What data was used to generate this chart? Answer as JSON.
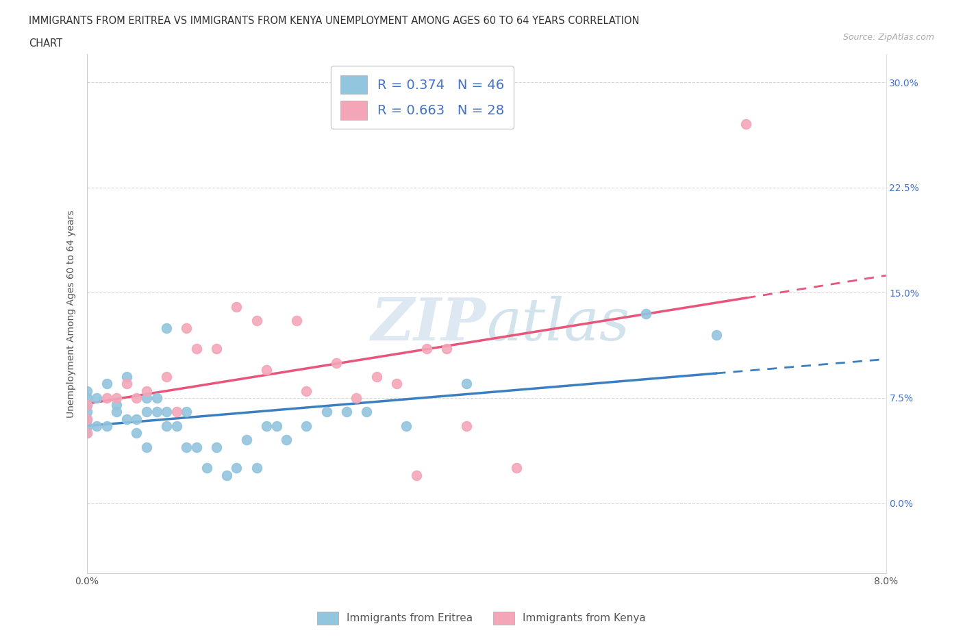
{
  "title_line1": "IMMIGRANTS FROM ERITREA VS IMMIGRANTS FROM KENYA UNEMPLOYMENT AMONG AGES 60 TO 64 YEARS CORRELATION",
  "title_line2": "CHART",
  "source": "Source: ZipAtlas.com",
  "ylabel": "Unemployment Among Ages 60 to 64 years",
  "xlim": [
    0.0,
    0.08
  ],
  "ylim": [
    -0.05,
    0.32
  ],
  "xticks": [
    0.0,
    0.02,
    0.04,
    0.06,
    0.08
  ],
  "xtick_labels": [
    "0.0%",
    "",
    "",
    "",
    "8.0%"
  ],
  "yticks": [
    0.0,
    0.075,
    0.15,
    0.225,
    0.3
  ],
  "ytick_labels_right": [
    "0.0%",
    "7.5%",
    "15.0%",
    "22.5%",
    "30.0%"
  ],
  "R_eritrea": 0.374,
  "N_eritrea": 46,
  "R_kenya": 0.663,
  "N_kenya": 28,
  "color_eritrea": "#92c5de",
  "color_kenya": "#f4a6b8",
  "color_trend_eritrea": "#3a7fc1",
  "color_trend_kenya": "#e8547a",
  "watermark_color": "#dde8f3",
  "eritrea_x": [
    0.0,
    0.0,
    0.0,
    0.0,
    0.0,
    0.0,
    0.0,
    0.001,
    0.001,
    0.002,
    0.002,
    0.003,
    0.003,
    0.004,
    0.004,
    0.005,
    0.005,
    0.006,
    0.006,
    0.006,
    0.007,
    0.007,
    0.008,
    0.008,
    0.008,
    0.009,
    0.01,
    0.01,
    0.011,
    0.012,
    0.013,
    0.014,
    0.015,
    0.016,
    0.017,
    0.018,
    0.019,
    0.02,
    0.022,
    0.024,
    0.026,
    0.028,
    0.032,
    0.038,
    0.056,
    0.063
  ],
  "eritrea_y": [
    0.05,
    0.055,
    0.06,
    0.065,
    0.07,
    0.075,
    0.08,
    0.055,
    0.075,
    0.055,
    0.085,
    0.065,
    0.07,
    0.06,
    0.09,
    0.05,
    0.06,
    0.04,
    0.065,
    0.075,
    0.065,
    0.075,
    0.055,
    0.065,
    0.125,
    0.055,
    0.04,
    0.065,
    0.04,
    0.025,
    0.04,
    0.02,
    0.025,
    0.045,
    0.025,
    0.055,
    0.055,
    0.045,
    0.055,
    0.065,
    0.065,
    0.065,
    0.055,
    0.085,
    0.135,
    0.12
  ],
  "kenya_x": [
    0.0,
    0.0,
    0.0,
    0.002,
    0.003,
    0.004,
    0.005,
    0.006,
    0.008,
    0.009,
    0.01,
    0.011,
    0.013,
    0.015,
    0.017,
    0.018,
    0.021,
    0.022,
    0.025,
    0.027,
    0.029,
    0.031,
    0.033,
    0.034,
    0.036,
    0.038,
    0.043,
    0.066
  ],
  "kenya_y": [
    0.05,
    0.06,
    0.07,
    0.075,
    0.075,
    0.085,
    0.075,
    0.08,
    0.09,
    0.065,
    0.125,
    0.11,
    0.11,
    0.14,
    0.13,
    0.095,
    0.13,
    0.08,
    0.1,
    0.075,
    0.09,
    0.085,
    0.02,
    0.11,
    0.11,
    0.055,
    0.025,
    0.27
  ]
}
